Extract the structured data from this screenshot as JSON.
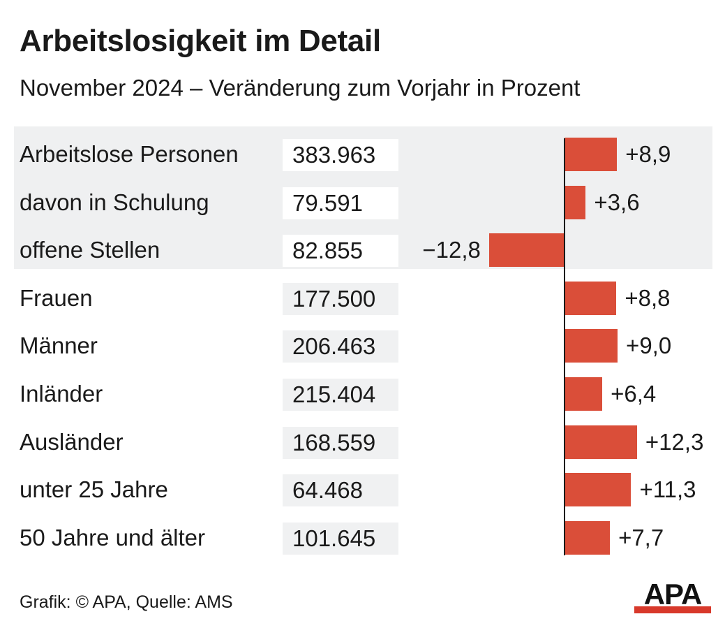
{
  "title": "Arbeitslosigkeit im Detail",
  "subtitle": "November 2024 – Veränderung zum Vorjahr in Prozent",
  "footer": "Grafik: © APA, Quelle: AMS",
  "logo_text": "APA",
  "colors": {
    "bar": "#da4e39",
    "group_background": "#eff0f1",
    "count_background": "#f0f1f2",
    "logo_accent": "#d8392b",
    "text": "#1a1a1a"
  },
  "rows": [
    {
      "label": "Arbeitslose Personen",
      "count": "383.963",
      "change": 8.9,
      "change_label": "+8,9",
      "group": "top"
    },
    {
      "label": "davon in Schulung",
      "count": "79.591",
      "change": 3.6,
      "change_label": "+3,6",
      "group": "top"
    },
    {
      "label": "offene Stellen",
      "count": "82.855",
      "change": -12.8,
      "change_label": "−12,8",
      "group": "top"
    },
    {
      "label": "Frauen",
      "count": "177.500",
      "change": 8.8,
      "change_label": "+8,8",
      "group": "detail"
    },
    {
      "label": "Männer",
      "count": "206.463",
      "change": 9.0,
      "change_label": "+9,0",
      "group": "detail"
    },
    {
      "label": "Inländer",
      "count": "215.404",
      "change": 6.4,
      "change_label": "+6,4",
      "group": "detail"
    },
    {
      "label": "Ausländer",
      "count": "168.559",
      "change": 12.3,
      "change_label": "+12,3",
      "group": "detail"
    },
    {
      "label": "unter 25 Jahre",
      "count": "64.468",
      "change": 11.3,
      "change_label": "+11,3",
      "group": "detail"
    },
    {
      "label": "50 Jahre und älter",
      "count": "101.645",
      "change": 7.7,
      "change_label": "+7,7",
      "group": "detail"
    }
  ],
  "chart_data": {
    "type": "bar",
    "orientation": "horizontal",
    "title": "Arbeitslosigkeit im Detail",
    "subtitle": "November 2024 – Veränderung zum Vorjahr in Prozent",
    "categories": [
      "Arbeitslose Personen",
      "davon in Schulung",
      "offene Stellen",
      "Frauen",
      "Männer",
      "Inländer",
      "Ausländer",
      "unter 25 Jahre",
      "50 Jahre und älter"
    ],
    "values": [
      8.9,
      3.6,
      -12.8,
      8.8,
      9.0,
      6.4,
      12.3,
      11.3,
      7.7
    ],
    "absolute_values": [
      383963,
      79591,
      82855,
      177500,
      206463,
      215404,
      168559,
      64468,
      101645
    ],
    "xlim": [
      -12.8,
      12.3
    ],
    "grid": false,
    "legend": "none"
  }
}
